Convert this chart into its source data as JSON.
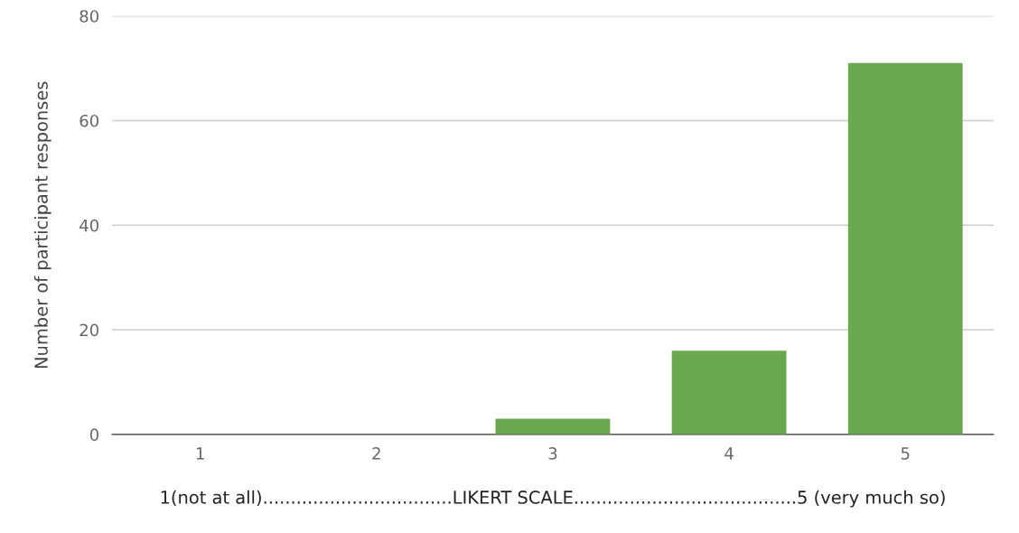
{
  "chart_data": {
    "type": "bar",
    "xlabel": "1(not at all)..................................LIKERT SCALE........................................5 (very much so)",
    "ylabel": "Number of participant responses",
    "categories": [
      "1",
      "2",
      "3",
      "4",
      "5"
    ],
    "values": [
      0,
      0,
      3,
      16,
      71
    ],
    "color": "#6aa84f",
    "ylim": [
      0,
      80
    ],
    "yticks": [
      0,
      20,
      40,
      60,
      80
    ],
    "grid": "y",
    "legend": false
  }
}
